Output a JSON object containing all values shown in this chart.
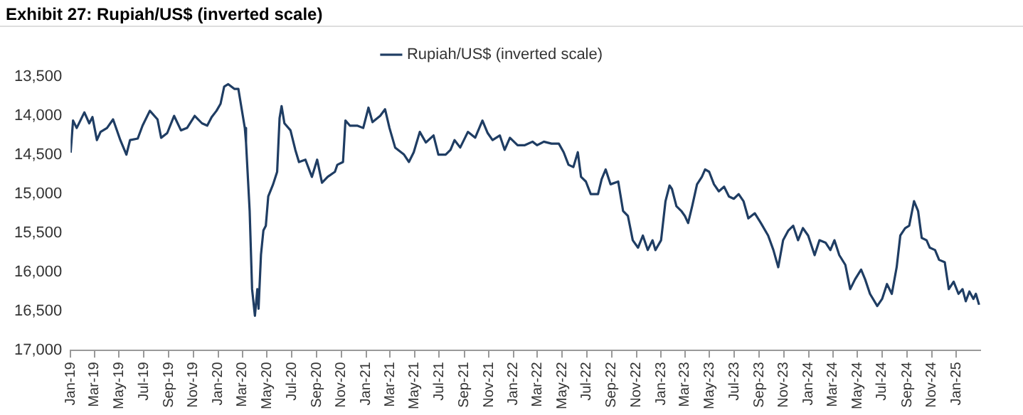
{
  "chart_data": {
    "type": "line",
    "title": "Exhibit 27: Rupiah/US$ (inverted scale)",
    "legend": "top",
    "grid": false,
    "marker": "none",
    "line_style": "solid",
    "xlim": [
      "2019-01-01",
      "2025-03-01"
    ],
    "xticks": [
      {
        "value": "2019-01",
        "label": "Jan-19"
      },
      {
        "value": "2019-03",
        "label": "Mar-19"
      },
      {
        "value": "2019-05",
        "label": "May-19"
      },
      {
        "value": "2019-07",
        "label": "Jul-19"
      },
      {
        "value": "2019-09",
        "label": "Sep-19"
      },
      {
        "value": "2019-11",
        "label": "Nov-19"
      },
      {
        "value": "2020-01",
        "label": "Jan-20"
      },
      {
        "value": "2020-03",
        "label": "Mar-20"
      },
      {
        "value": "2020-05",
        "label": "May-20"
      },
      {
        "value": "2020-07",
        "label": "Jul-20"
      },
      {
        "value": "2020-09",
        "label": "Sep-20"
      },
      {
        "value": "2020-11",
        "label": "Nov-20"
      },
      {
        "value": "2021-01",
        "label": "Jan-21"
      },
      {
        "value": "2021-03",
        "label": "Mar-21"
      },
      {
        "value": "2021-05",
        "label": "May-21"
      },
      {
        "value": "2021-07",
        "label": "Jul-21"
      },
      {
        "value": "2021-09",
        "label": "Sep-21"
      },
      {
        "value": "2021-11",
        "label": "Nov-21"
      },
      {
        "value": "2022-01",
        "label": "Jan-22"
      },
      {
        "value": "2022-03",
        "label": "Mar-22"
      },
      {
        "value": "2022-05",
        "label": "May-22"
      },
      {
        "value": "2022-07",
        "label": "Jul-22"
      },
      {
        "value": "2022-09",
        "label": "Sep-22"
      },
      {
        "value": "2022-11",
        "label": "Nov-22"
      },
      {
        "value": "2023-01",
        "label": "Jan-23"
      },
      {
        "value": "2023-03",
        "label": "Mar-23"
      },
      {
        "value": "2023-05",
        "label": "May-23"
      },
      {
        "value": "2023-07",
        "label": "Jul-23"
      },
      {
        "value": "2023-09",
        "label": "Sep-23"
      },
      {
        "value": "2023-11",
        "label": "Nov-23"
      },
      {
        "value": "2024-01",
        "label": "Jan-24"
      },
      {
        "value": "2024-03",
        "label": "Mar-24"
      },
      {
        "value": "2024-05",
        "label": "May-24"
      },
      {
        "value": "2024-07",
        "label": "Jul-24"
      },
      {
        "value": "2024-09",
        "label": "Sep-24"
      },
      {
        "value": "2024-11",
        "label": "Nov-24"
      },
      {
        "value": "2025-01",
        "label": "Jan-25"
      }
    ],
    "ylim": [
      17000,
      13500
    ],
    "yticks": [
      {
        "value": 13500,
        "label": "13,500"
      },
      {
        "value": 14000,
        "label": "14,000"
      },
      {
        "value": 14500,
        "label": "14,500"
      },
      {
        "value": 15000,
        "label": "15,000"
      },
      {
        "value": 15500,
        "label": "15,500"
      },
      {
        "value": 16000,
        "label": "16,000"
      },
      {
        "value": 16500,
        "label": "16,500"
      },
      {
        "value": 17000,
        "label": "17,000"
      }
    ],
    "x": [
      "2019-01-01",
      "2019-01-07",
      "2019-01-16",
      "2019-02-04",
      "2019-02-16",
      "2019-02-24",
      "2019-03-07",
      "2019-03-16",
      "2019-04-01",
      "2019-04-16",
      "2019-05-04",
      "2019-05-19",
      "2019-05-28",
      "2019-06-16",
      "2019-06-28",
      "2019-07-16",
      "2019-08-04",
      "2019-08-13",
      "2019-08-28",
      "2019-09-14",
      "2019-10-01",
      "2019-10-16",
      "2019-11-04",
      "2019-11-22",
      "2019-12-05",
      "2019-12-16",
      "2019-12-28",
      "2020-01-07",
      "2020-01-16",
      "2020-01-26",
      "2020-02-10",
      "2020-02-20",
      "2020-02-28",
      "2020-03-07",
      "2020-03-10",
      "2020-03-19",
      "2020-03-25",
      "2020-04-01",
      "2020-04-07",
      "2020-04-10",
      "2020-04-16",
      "2020-04-22",
      "2020-04-28",
      "2020-05-04",
      "2020-05-16",
      "2020-05-26",
      "2020-06-01",
      "2020-06-06",
      "2020-06-13",
      "2020-06-28",
      "2020-07-10",
      "2020-07-19",
      "2020-08-04",
      "2020-08-20",
      "2020-09-02",
      "2020-09-14",
      "2020-09-28",
      "2020-10-16",
      "2020-10-22",
      "2020-11-05",
      "2020-11-11",
      "2020-11-22",
      "2020-12-10",
      "2020-12-25",
      "2021-01-07",
      "2021-01-17",
      "2021-02-05",
      "2021-02-17",
      "2021-02-28",
      "2021-03-14",
      "2021-04-05",
      "2021-04-17",
      "2021-04-29",
      "2021-05-14",
      "2021-05-29",
      "2021-06-17",
      "2021-06-29",
      "2021-07-17",
      "2021-07-29",
      "2021-08-08",
      "2021-08-22",
      "2021-09-10",
      "2021-09-28",
      "2021-10-16",
      "2021-10-29",
      "2021-11-10",
      "2021-11-28",
      "2021-12-10",
      "2021-12-23",
      "2022-01-11",
      "2022-01-29",
      "2022-02-17",
      "2022-02-28",
      "2022-03-17",
      "2022-04-05",
      "2022-04-23",
      "2022-05-05",
      "2022-05-17",
      "2022-05-29",
      "2022-06-09",
      "2022-06-17",
      "2022-06-29",
      "2022-07-11",
      "2022-07-29",
      "2022-08-07",
      "2022-08-17",
      "2022-08-29",
      "2022-09-17",
      "2022-09-29",
      "2022-10-11",
      "2022-10-23",
      "2022-11-05",
      "2022-11-17",
      "2022-11-29",
      "2022-12-11",
      "2022-12-18",
      "2023-01-01",
      "2023-01-12",
      "2023-01-22",
      "2023-01-28",
      "2023-02-08",
      "2023-02-20",
      "2023-03-01",
      "2023-03-09",
      "2023-03-19",
      "2023-03-31",
      "2023-04-12",
      "2023-04-20",
      "2023-04-30",
      "2023-05-12",
      "2023-05-24",
      "2023-06-06",
      "2023-06-18",
      "2023-06-30",
      "2023-07-12",
      "2023-07-24",
      "2023-08-05",
      "2023-08-21",
      "2023-09-05",
      "2023-09-23",
      "2023-10-06",
      "2023-10-18",
      "2023-10-30",
      "2023-11-12",
      "2023-11-24",
      "2023-12-06",
      "2023-12-18",
      "2023-12-31",
      "2024-01-16",
      "2024-01-28",
      "2024-02-12",
      "2024-02-24",
      "2024-03-05",
      "2024-03-17",
      "2024-04-01",
      "2024-04-13",
      "2024-04-25",
      "2024-05-10",
      "2024-05-20",
      "2024-06-01",
      "2024-06-19",
      "2024-07-01",
      "2024-07-13",
      "2024-07-25",
      "2024-08-06",
      "2024-08-15",
      "2024-08-27",
      "2024-09-06",
      "2024-09-18",
      "2024-09-28",
      "2024-10-07",
      "2024-10-19",
      "2024-10-27",
      "2024-11-09",
      "2024-11-19",
      "2024-12-03",
      "2024-12-13",
      "2024-12-25",
      "2025-01-06",
      "2025-01-16",
      "2025-01-24",
      "2025-02-02",
      "2025-02-12",
      "2025-02-18",
      "2025-02-26"
    ],
    "series": [
      {
        "name": "Rupiah/US$ (inverted scale)",
        "color": "#1f3d63",
        "values": [
          14470,
          14060,
          14155,
          13955,
          14095,
          14015,
          14310,
          14205,
          14155,
          14045,
          14310,
          14495,
          14310,
          14290,
          14125,
          13935,
          14045,
          14280,
          14220,
          14000,
          14185,
          14155,
          14000,
          14095,
          14125,
          14015,
          13935,
          13845,
          13625,
          13595,
          13655,
          13655,
          13905,
          14155,
          14340,
          15215,
          16215,
          16555,
          16215,
          16465,
          15775,
          15465,
          15405,
          15030,
          14875,
          14715,
          14030,
          13875,
          14095,
          14185,
          14435,
          14590,
          14560,
          14780,
          14560,
          14855,
          14780,
          14715,
          14625,
          14590,
          14060,
          14125,
          14125,
          14155,
          13895,
          14080,
          14000,
          13915,
          14155,
          14405,
          14495,
          14590,
          14465,
          14205,
          14340,
          14250,
          14495,
          14495,
          14435,
          14310,
          14405,
          14205,
          14280,
          14060,
          14220,
          14310,
          14250,
          14435,
          14280,
          14375,
          14375,
          14330,
          14375,
          14330,
          14355,
          14355,
          14465,
          14625,
          14655,
          14465,
          14780,
          14840,
          15000,
          15000,
          14810,
          14685,
          14875,
          14840,
          15215,
          15280,
          15590,
          15685,
          15530,
          15715,
          15590,
          15715,
          15590,
          15090,
          14890,
          14935,
          15155,
          15215,
          15280,
          15370,
          15155,
          14875,
          14780,
          14685,
          14715,
          14875,
          14965,
          14905,
          15030,
          15060,
          15000,
          15090,
          15310,
          15245,
          15370,
          15530,
          15715,
          15935,
          15590,
          15465,
          15405,
          15590,
          15435,
          15530,
          15780,
          15590,
          15620,
          15715,
          15590,
          15780,
          15905,
          16215,
          16090,
          15965,
          16090,
          16275,
          16430,
          16340,
          16150,
          16275,
          15935,
          15530,
          15435,
          15405,
          15090,
          15215,
          15560,
          15590,
          15685,
          15715,
          15840,
          15870,
          16215,
          16120,
          16275,
          16215,
          16370,
          16245,
          16340,
          16275,
          16415
        ]
      }
    ]
  }
}
